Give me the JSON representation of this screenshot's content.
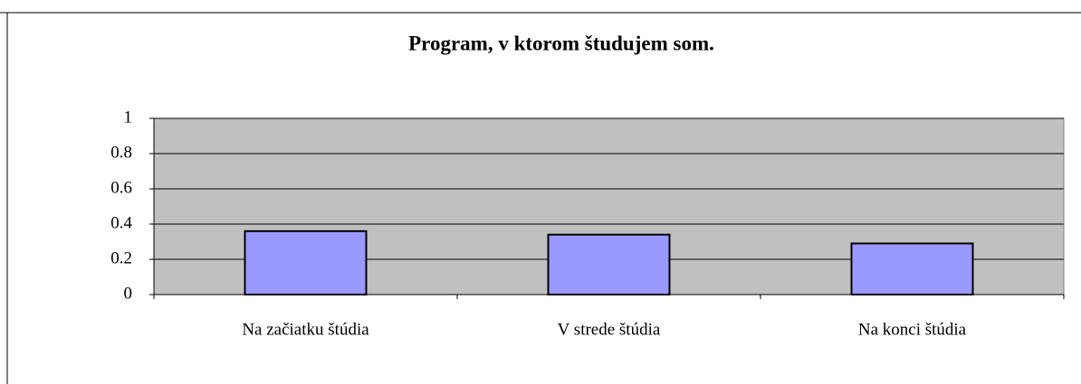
{
  "chart_data": {
    "type": "bar",
    "title": "Program, v ktorom študujem som.",
    "categories": [
      "Na začiatku štúdia",
      "V strede štúdia",
      "Na konci štúdia"
    ],
    "values": [
      0.36,
      0.34,
      0.29
    ],
    "color": "#9999ff",
    "ylim": [
      0,
      1
    ],
    "yticks": [
      0,
      0.2,
      0.4,
      0.6,
      0.8,
      1
    ],
    "grid": true
  }
}
